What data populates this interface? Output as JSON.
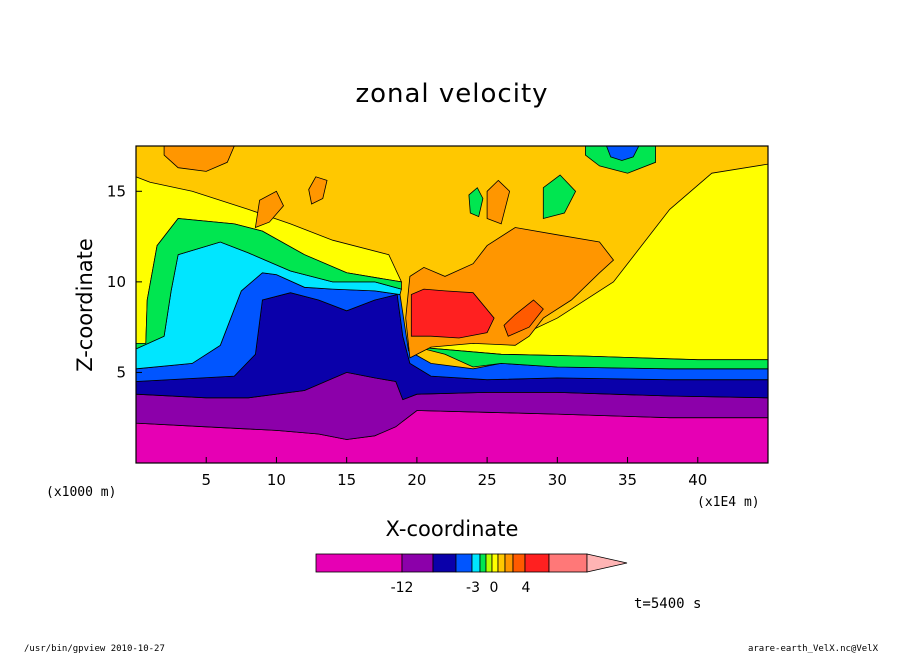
{
  "chart_data": {
    "type": "heatmap",
    "title": "zonal velocity",
    "xlabel": "X-coordinate",
    "ylabel": "Z-coordinate",
    "x_unit_label": "(x1E4 m)",
    "y_unit_label": "(x1000 m)",
    "xlim": [
      0,
      45
    ],
    "ylim": [
      0,
      17.5
    ],
    "x_ticks": [
      5,
      10,
      15,
      20,
      25,
      30,
      35,
      40
    ],
    "y_ticks": [
      5,
      10,
      15
    ],
    "colorbar": {
      "tick_labels": [
        "-12",
        "-3",
        "0",
        "4"
      ],
      "colors": [
        "#e600b4",
        "#8c00aa",
        "#0a00aa",
        "#0055ff",
        "#00e6ff",
        "#00e650",
        "#b4ff00",
        "#ffff00",
        "#ffc800",
        "#ff9600",
        "#ff5a00",
        "#ff2020",
        "#ff7878",
        "#ffb4b4"
      ]
    },
    "time_label": "t=5400 s",
    "bands": [
      {
        "name": "magenta",
        "color": "#e600b4",
        "polygon": [
          [
            0,
            0
          ],
          [
            45,
            0
          ],
          [
            45,
            2.5
          ],
          [
            38,
            2.5
          ],
          [
            30,
            2.7
          ],
          [
            25,
            2.8
          ],
          [
            20,
            2.9
          ],
          [
            19,
            2.3
          ],
          [
            17,
            1.5
          ],
          [
            15,
            1.3
          ],
          [
            13,
            1.6
          ],
          [
            10,
            1.8
          ],
          [
            5,
            2.0
          ],
          [
            0,
            2.2
          ]
        ]
      },
      {
        "name": "purple",
        "color": "#8c00aa",
        "polygon": [
          [
            0,
            2.2
          ],
          [
            5,
            2.0
          ],
          [
            10,
            1.8
          ],
          [
            13,
            1.6
          ],
          [
            15,
            1.3
          ],
          [
            17,
            1.5
          ],
          [
            18.5,
            2.0
          ],
          [
            19,
            2.3
          ],
          [
            20,
            2.9
          ],
          [
            25,
            2.8
          ],
          [
            30,
            2.7
          ],
          [
            38,
            2.5
          ],
          [
            45,
            2.5
          ],
          [
            45,
            3.6
          ],
          [
            38,
            3.7
          ],
          [
            30,
            3.9
          ],
          [
            25,
            3.9
          ],
          [
            20,
            3.8
          ],
          [
            19,
            3.5
          ],
          [
            18.5,
            4.5
          ],
          [
            17,
            4.7
          ],
          [
            15,
            5.0
          ],
          [
            12,
            4.0
          ],
          [
            8,
            3.6
          ],
          [
            5,
            3.6
          ],
          [
            0,
            3.8
          ]
        ]
      },
      {
        "name": "navy",
        "color": "#0a00aa",
        "polygon": [
          [
            0,
            3.8
          ],
          [
            5,
            3.6
          ],
          [
            8,
            3.6
          ],
          [
            12,
            4.0
          ],
          [
            15,
            5.0
          ],
          [
            17,
            4.7
          ],
          [
            18.5,
            4.5
          ],
          [
            19,
            3.5
          ],
          [
            20,
            3.8
          ],
          [
            25,
            3.9
          ],
          [
            30,
            3.9
          ],
          [
            38,
            3.7
          ],
          [
            45,
            3.6
          ],
          [
            45,
            4.6
          ],
          [
            38,
            4.6
          ],
          [
            30,
            4.7
          ],
          [
            25,
            4.6
          ],
          [
            21,
            4.8
          ],
          [
            19.5,
            5.5
          ],
          [
            19,
            7
          ],
          [
            18.6,
            9.3
          ],
          [
            17,
            9.0
          ],
          [
            15,
            8.4
          ],
          [
            13,
            9.0
          ],
          [
            11,
            9.4
          ],
          [
            9,
            9.0
          ],
          [
            8.5,
            6
          ],
          [
            7,
            4.8
          ],
          [
            0,
            4.5
          ]
        ]
      },
      {
        "name": "blue",
        "color": "#0055ff",
        "polygon": [
          [
            0,
            4.5
          ],
          [
            7,
            4.8
          ],
          [
            8.5,
            6
          ],
          [
            9,
            9.0
          ],
          [
            11,
            9.4
          ],
          [
            13,
            9.0
          ],
          [
            15,
            8.4
          ],
          [
            17,
            9.0
          ],
          [
            18.6,
            9.3
          ],
          [
            19,
            7
          ],
          [
            19.5,
            5.5
          ],
          [
            21,
            4.8
          ],
          [
            25,
            4.6
          ],
          [
            30,
            4.7
          ],
          [
            38,
            4.6
          ],
          [
            45,
            4.6
          ],
          [
            45,
            5.2
          ],
          [
            38,
            5.2
          ],
          [
            30,
            5.3
          ],
          [
            26,
            5.5
          ],
          [
            24,
            5.2
          ],
          [
            21,
            5.5
          ],
          [
            19.4,
            6.2
          ],
          [
            18.8,
            9.3
          ],
          [
            17,
            9.5
          ],
          [
            14,
            9.6
          ],
          [
            12,
            9.7
          ],
          [
            10,
            10.4
          ],
          [
            9,
            10.5
          ],
          [
            7.5,
            9.5
          ],
          [
            6,
            6.5
          ],
          [
            4,
            5.5
          ],
          [
            0,
            5.2
          ]
        ]
      },
      {
        "name": "cyan",
        "color": "#00e6ff",
        "polygon": [
          [
            0,
            5.2
          ],
          [
            4,
            5.5
          ],
          [
            6,
            6.5
          ],
          [
            7.5,
            9.5
          ],
          [
            9,
            10.5
          ],
          [
            10,
            10.4
          ],
          [
            12,
            9.7
          ],
          [
            14,
            9.6
          ],
          [
            17,
            9.5
          ],
          [
            18.8,
            9.3
          ],
          [
            18.9,
            9.6
          ],
          [
            17,
            10.0
          ],
          [
            14,
            10.0
          ],
          [
            11,
            10.6
          ],
          [
            8,
            11.6
          ],
          [
            6,
            12.2
          ],
          [
            3,
            11.5
          ],
          [
            2.5,
            9.5
          ],
          [
            2,
            7
          ],
          [
            0,
            6.3
          ]
        ]
      },
      {
        "name": "green-left",
        "color": "#00e650",
        "polygon": [
          [
            0,
            6.3
          ],
          [
            2,
            7
          ],
          [
            2.5,
            9.5
          ],
          [
            3,
            11.5
          ],
          [
            6,
            12.2
          ],
          [
            8,
            11.6
          ],
          [
            11,
            10.6
          ],
          [
            14,
            10.0
          ],
          [
            17,
            10.0
          ],
          [
            18.9,
            9.6
          ],
          [
            18.9,
            10.0
          ],
          [
            15,
            10.5
          ],
          [
            12,
            11.5
          ],
          [
            9,
            12.8
          ],
          [
            7,
            13.2
          ],
          [
            3,
            13.5
          ],
          [
            1.5,
            12.0
          ],
          [
            0.8,
            9
          ],
          [
            0.7,
            6.6
          ],
          [
            0,
            6.6
          ]
        ]
      },
      {
        "name": "green-right",
        "color": "#00e650",
        "polygon": [
          [
            45,
            5.2
          ],
          [
            38,
            5.2
          ],
          [
            30,
            5.3
          ],
          [
            26,
            5.5
          ],
          [
            24,
            5.3
          ],
          [
            22,
            6.0
          ],
          [
            20,
            6.4
          ],
          [
            26,
            6.0
          ],
          [
            32,
            5.9
          ],
          [
            40,
            5.7
          ],
          [
            45,
            5.7
          ]
        ]
      },
      {
        "name": "orange-mid",
        "color": "#ff9600",
        "polygon": [
          [
            19.5,
            5.8
          ],
          [
            21,
            6.4
          ],
          [
            24,
            6.6
          ],
          [
            27,
            6.5
          ],
          [
            28,
            7
          ],
          [
            29,
            8
          ],
          [
            31,
            9
          ],
          [
            33,
            10.5
          ],
          [
            34,
            11.2
          ],
          [
            33,
            12.2
          ],
          [
            30,
            12.6
          ],
          [
            27,
            13
          ],
          [
            25,
            12
          ],
          [
            24,
            11.0
          ],
          [
            22,
            10.3
          ],
          [
            20.5,
            10.8
          ],
          [
            19.5,
            10.3
          ],
          [
            19.2,
            8
          ]
        ]
      },
      {
        "name": "red-core",
        "color": "#ff2020",
        "polygon": [
          [
            19.6,
            7.0
          ],
          [
            21,
            7.0
          ],
          [
            23,
            6.9
          ],
          [
            25,
            7.2
          ],
          [
            25.5,
            8
          ],
          [
            24,
            9.4
          ],
          [
            22,
            9.5
          ],
          [
            20.5,
            9.6
          ],
          [
            19.6,
            9.3
          ]
        ]
      },
      {
        "name": "red-right",
        "color": "#ff5a00",
        "polygon": [
          [
            26.5,
            7.0
          ],
          [
            28,
            7.5
          ],
          [
            29,
            8.5
          ],
          [
            28.3,
            9.0
          ],
          [
            27,
            8.2
          ],
          [
            26.2,
            7.6
          ]
        ]
      },
      {
        "name": "orange-tl",
        "color": "#ff9600",
        "polygon": [
          [
            2,
            17.5
          ],
          [
            7,
            17.5
          ],
          [
            6.5,
            16.6
          ],
          [
            5,
            16.1
          ],
          [
            3,
            16.3
          ],
          [
            2,
            17
          ]
        ]
      },
      {
        "name": "orange-b1",
        "color": "#ff9600",
        "polygon": [
          [
            8.5,
            13
          ],
          [
            9.5,
            13.3
          ],
          [
            10.5,
            14.2
          ],
          [
            10,
            15.0
          ],
          [
            8.8,
            14.5
          ]
        ]
      },
      {
        "name": "orange-b2",
        "color": "#ff9600",
        "polygon": [
          [
            12.5,
            14.3
          ],
          [
            13.3,
            14.6
          ],
          [
            13.6,
            15.6
          ],
          [
            12.8,
            15.8
          ],
          [
            12.3,
            15.1
          ]
        ]
      },
      {
        "name": "orange-b3",
        "color": "#ff9600",
        "polygon": [
          [
            25,
            13.5
          ],
          [
            26,
            13.2
          ],
          [
            26.6,
            15.0
          ],
          [
            25.8,
            15.6
          ],
          [
            25,
            15.0
          ]
        ]
      },
      {
        "name": "green-b1",
        "color": "#00e650",
        "polygon": [
          [
            23.8,
            13.8
          ],
          [
            24.4,
            13.6
          ],
          [
            24.7,
            14.6
          ],
          [
            24.3,
            15.2
          ],
          [
            23.7,
            14.8
          ]
        ]
      },
      {
        "name": "green-b2",
        "color": "#00e650",
        "polygon": [
          [
            29,
            13.5
          ],
          [
            30.5,
            13.8
          ],
          [
            31.3,
            15.0
          ],
          [
            30.2,
            15.9
          ],
          [
            29,
            15.2
          ]
        ]
      },
      {
        "name": "green-top",
        "color": "#00e650",
        "polygon": [
          [
            32,
            17.5
          ],
          [
            37,
            17.5
          ],
          [
            37,
            16.6
          ],
          [
            35,
            16.0
          ],
          [
            33,
            16.4
          ],
          [
            32,
            17
          ]
        ]
      },
      {
        "name": "blue-top",
        "color": "#0055ff",
        "polygon": [
          [
            33.5,
            17.5
          ],
          [
            35.8,
            17.5
          ],
          [
            35.4,
            16.9
          ],
          [
            34.6,
            16.7
          ],
          [
            33.8,
            16.9
          ]
        ]
      }
    ]
  },
  "footer": {
    "left": "/usr/bin/gpview  2010-10-27",
    "right": "arare-earth_VelX.nc@VelX"
  }
}
